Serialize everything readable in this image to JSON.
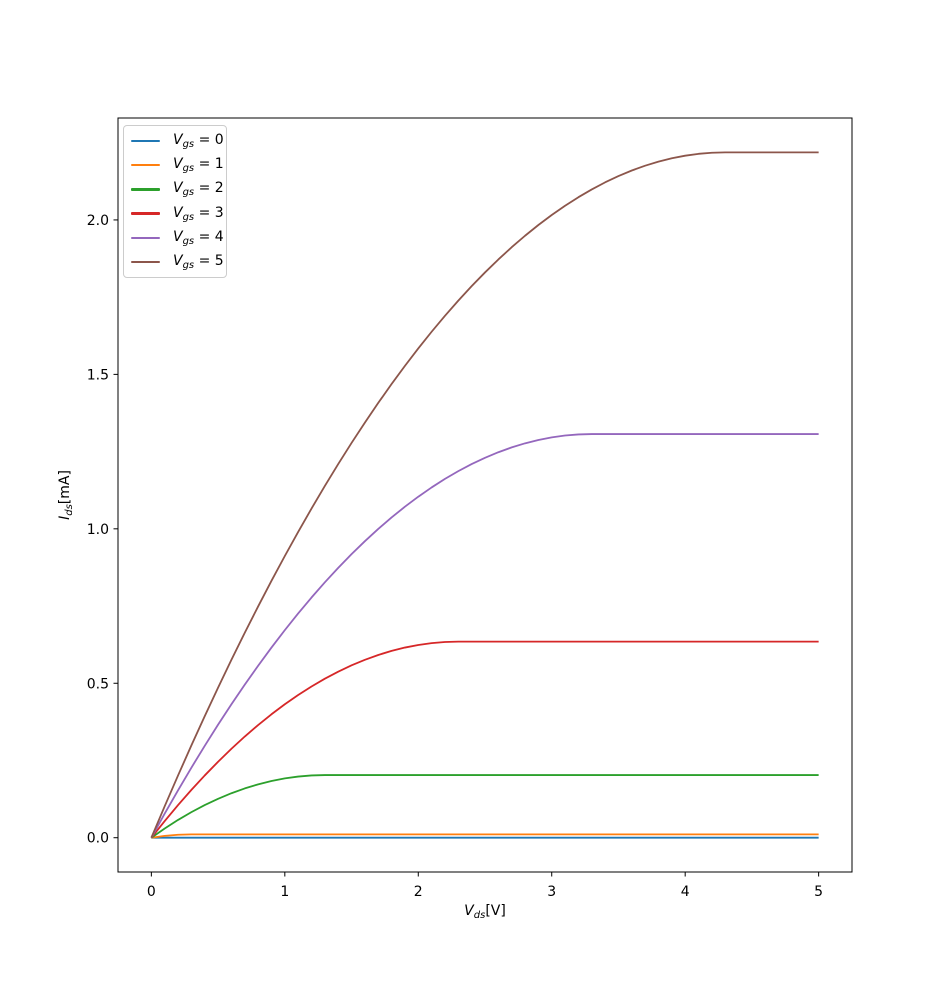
{
  "figure": {
    "background": "#ffffff",
    "axis_color": "#000000",
    "text_color": "#000000"
  },
  "chart_data": {
    "type": "line",
    "title": "",
    "xlabel": {
      "variable": "V",
      "subscript": "ds",
      "unit": "[V]"
    },
    "ylabel": {
      "variable": "I",
      "subscript": "ds",
      "unit": "[mA]"
    },
    "xlim": [
      -0.25,
      5.25
    ],
    "ylim": [
      -0.111,
      2.33
    ],
    "xtick_values": [
      0,
      1,
      2,
      3,
      4,
      5
    ],
    "xtick_labels": [
      "0",
      "1",
      "2",
      "3",
      "4",
      "5"
    ],
    "ytick_values": [
      0,
      0.5,
      1,
      1.5,
      2
    ],
    "ytick_labels": [
      "0.0",
      "0.5",
      "1.0",
      "1.5",
      "2.0"
    ],
    "grid": false,
    "legend_position": "upper left",
    "legend_label": {
      "variable": "V",
      "subscript": "gs",
      "equals": " = "
    },
    "x": [
      0,
      0.1,
      0.2,
      0.3,
      0.4,
      0.5,
      0.6,
      0.7,
      0.8,
      0.9,
      1,
      1.1,
      1.2,
      1.3,
      1.4,
      1.5,
      1.6,
      1.7,
      1.8,
      1.9,
      2,
      2.1,
      2.2,
      2.3,
      2.4,
      2.5,
      2.6,
      2.7,
      2.8,
      2.9,
      3,
      3.1,
      3.2,
      3.3,
      3.4,
      3.5,
      3.6,
      3.7,
      3.8,
      3.9,
      4,
      4.1,
      4.2,
      4.3,
      4.4,
      4.5,
      4.6,
      4.7,
      4.8,
      4.9,
      5
    ],
    "series": [
      {
        "name": "Vgs = 0",
        "vgs": 0,
        "color": "#1f77b4",
        "values": [
          0,
          0,
          0,
          0,
          0,
          0,
          0,
          0,
          0,
          0,
          0,
          0,
          0,
          0,
          0,
          0,
          0,
          0,
          0,
          0,
          0,
          0,
          0,
          0,
          0,
          0,
          0,
          0,
          0,
          0,
          0,
          0,
          0,
          0,
          0,
          0,
          0,
          0,
          0,
          0,
          0,
          0,
          0,
          0,
          0,
          0,
          0,
          0,
          0,
          0,
          0
        ]
      },
      {
        "name": "Vgs = 1",
        "vgs": 1,
        "color": "#ff7f0e",
        "values": [
          0,
          0.006,
          0.0096,
          0.0108,
          0.0108,
          0.0108,
          0.0108,
          0.0108,
          0.0108,
          0.0108,
          0.0108,
          0.0108,
          0.0108,
          0.0108,
          0.0108,
          0.0108,
          0.0108,
          0.0108,
          0.0108,
          0.0108,
          0.0108,
          0.0108,
          0.0108,
          0.0108,
          0.0108,
          0.0108,
          0.0108,
          0.0108,
          0.0108,
          0.0108,
          0.0108,
          0.0108,
          0.0108,
          0.0108,
          0.0108,
          0.0108,
          0.0108,
          0.0108,
          0.0108,
          0.0108,
          0.0108,
          0.0108,
          0.0108,
          0.0108,
          0.0108,
          0.0108,
          0.0108,
          0.0108,
          0.0108,
          0.0108,
          0.0108
        ]
      },
      {
        "name": "Vgs = 2",
        "vgs": 2,
        "color": "#2ca02c",
        "values": [
          0,
          0.03,
          0.0576,
          0.0828,
          0.1056,
          0.126,
          0.144,
          0.1596,
          0.1728,
          0.1836,
          0.192,
          0.198,
          0.2016,
          0.2028,
          0.2028,
          0.2028,
          0.2028,
          0.2028,
          0.2028,
          0.2028,
          0.2028,
          0.2028,
          0.2028,
          0.2028,
          0.2028,
          0.2028,
          0.2028,
          0.2028,
          0.2028,
          0.2028,
          0.2028,
          0.2028,
          0.2028,
          0.2028,
          0.2028,
          0.2028,
          0.2028,
          0.2028,
          0.2028,
          0.2028,
          0.2028,
          0.2028,
          0.2028,
          0.2028,
          0.2028,
          0.2028,
          0.2028,
          0.2028,
          0.2028,
          0.2028,
          0.2028
        ]
      },
      {
        "name": "Vgs = 3",
        "vgs": 3,
        "color": "#d62728",
        "values": [
          0,
          0.054,
          0.1056,
          0.1548,
          0.2016,
          0.246,
          0.288,
          0.3276,
          0.3648,
          0.3996,
          0.432,
          0.462,
          0.4896,
          0.5148,
          0.5376,
          0.558,
          0.576,
          0.5916,
          0.6048,
          0.6156,
          0.624,
          0.63,
          0.6336,
          0.6348,
          0.6348,
          0.6348,
          0.6348,
          0.6348,
          0.6348,
          0.6348,
          0.6348,
          0.6348,
          0.6348,
          0.6348,
          0.6348,
          0.6348,
          0.6348,
          0.6348,
          0.6348,
          0.6348,
          0.6348,
          0.6348,
          0.6348,
          0.6348,
          0.6348,
          0.6348,
          0.6348,
          0.6348,
          0.6348,
          0.6348,
          0.6348
        ]
      },
      {
        "name": "Vgs = 4",
        "vgs": 4,
        "color": "#9467bd",
        "values": [
          0,
          0.078,
          0.1536,
          0.2268,
          0.2976,
          0.366,
          0.432,
          0.4956,
          0.5568,
          0.6156,
          0.672,
          0.726,
          0.7776,
          0.8268,
          0.8736,
          0.918,
          0.96,
          0.9996,
          1.0368,
          1.0716,
          1.104,
          1.134,
          1.1616,
          1.1868,
          1.2096,
          1.23,
          1.248,
          1.2636,
          1.2768,
          1.2876,
          1.296,
          1.302,
          1.3056,
          1.3068,
          1.3068,
          1.3068,
          1.3068,
          1.3068,
          1.3068,
          1.3068,
          1.3068,
          1.3068,
          1.3068,
          1.3068,
          1.3068,
          1.3068,
          1.3068,
          1.3068,
          1.3068,
          1.3068,
          1.3068
        ]
      },
      {
        "name": "Vgs = 5",
        "vgs": 5,
        "color": "#8c564b",
        "values": [
          0,
          0.102,
          0.2016,
          0.2988,
          0.3936,
          0.486,
          0.576,
          0.6636,
          0.7488,
          0.8316,
          0.912,
          0.99,
          1.0656,
          1.1388,
          1.2096,
          1.278,
          1.344,
          1.4076,
          1.4688,
          1.5276,
          1.584,
          1.638,
          1.6896,
          1.7388,
          1.7856,
          1.83,
          1.872,
          1.9116,
          1.9488,
          1.9836,
          2.016,
          2.046,
          2.0736,
          2.0988,
          2.1216,
          2.142,
          2.16,
          2.1756,
          2.1888,
          2.1996,
          2.208,
          2.214,
          2.2176,
          2.2188,
          2.2188,
          2.2188,
          2.2188,
          2.2188,
          2.2188,
          2.2188,
          2.2188
        ]
      }
    ]
  }
}
